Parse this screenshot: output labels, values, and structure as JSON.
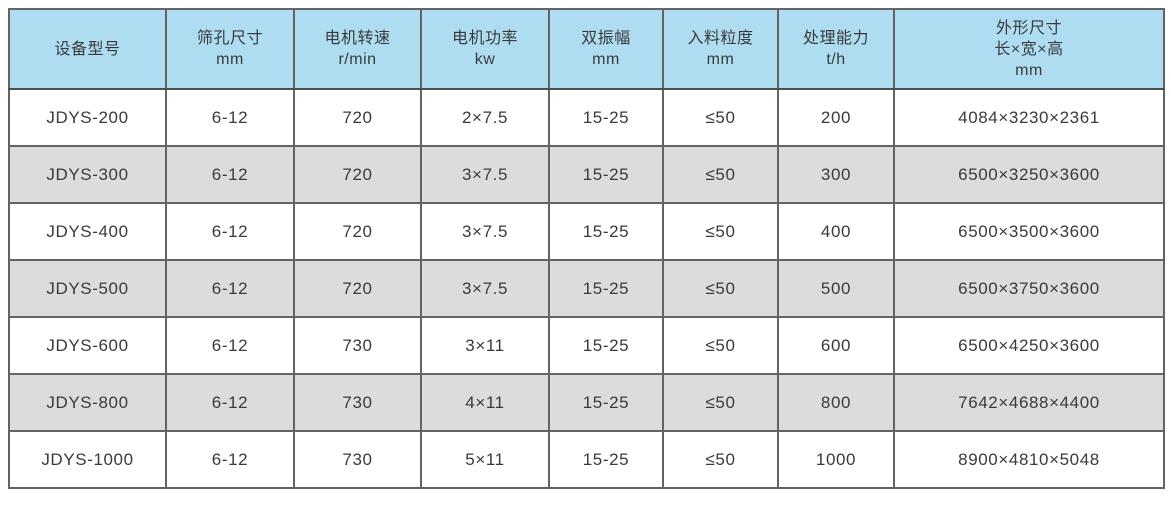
{
  "table": {
    "name": "equipment-spec-table",
    "colors": {
      "header_bg": "#aeddf2",
      "row_bg": "#ffffff",
      "row_alt_bg": "#dcdcda",
      "border": "#636363",
      "outer_border": "#4e4e4e",
      "text": "#3a3a3a",
      "page_bg": "#ffffff"
    },
    "columns": [
      {
        "id": "model",
        "lines": [
          "设备型号"
        ]
      },
      {
        "id": "screen-hole",
        "lines": [
          "筛孔尺寸",
          "mm"
        ]
      },
      {
        "id": "motor-speed",
        "lines": [
          "电机转速",
          "r/min"
        ]
      },
      {
        "id": "motor-power",
        "lines": [
          "电机功率",
          "kw"
        ]
      },
      {
        "id": "amplitude",
        "lines": [
          "双振幅",
          "mm"
        ]
      },
      {
        "id": "feed-size",
        "lines": [
          "入料粒度",
          "mm"
        ]
      },
      {
        "id": "capacity",
        "lines": [
          "处理能力",
          "t/h"
        ]
      },
      {
        "id": "dimensions",
        "lines": [
          "外形尺寸",
          "长×宽×高",
          "mm"
        ]
      }
    ],
    "rows": [
      [
        "JDYS-200",
        "6-12",
        "720",
        "2×7.5",
        "15-25",
        "≤50",
        "200",
        "4084×3230×2361"
      ],
      [
        "JDYS-300",
        "6-12",
        "720",
        "3×7.5",
        "15-25",
        "≤50",
        "300",
        "6500×3250×3600"
      ],
      [
        "JDYS-400",
        "6-12",
        "720",
        "3×7.5",
        "15-25",
        "≤50",
        "400",
        "6500×3500×3600"
      ],
      [
        "JDYS-500",
        "6-12",
        "720",
        "3×7.5",
        "15-25",
        "≤50",
        "500",
        "6500×3750×3600"
      ],
      [
        "JDYS-600",
        "6-12",
        "730",
        "3×11",
        "15-25",
        "≤50",
        "600",
        "6500×4250×3600"
      ],
      [
        "JDYS-800",
        "6-12",
        "730",
        "4×11",
        "15-25",
        "≤50",
        "800",
        "7642×4688×4400"
      ],
      [
        "JDYS-1000",
        "6-12",
        "730",
        "5×11",
        "15-25",
        "≤50",
        "1000",
        "8900×4810×5048"
      ]
    ]
  }
}
